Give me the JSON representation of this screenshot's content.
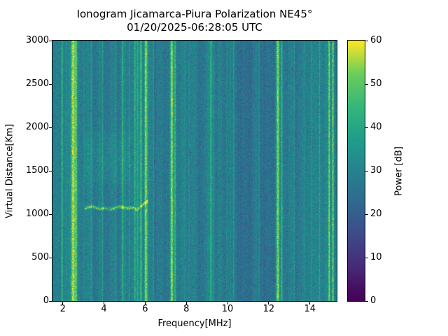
{
  "figure": {
    "title_line1": "Ionogram Jicamarca-Piura Polarization NE45°",
    "title_line2": "01/20/2025-06:28:05 UTC"
  },
  "chart_data": {
    "type": "heatmap",
    "title": "Ionogram Jicamarca-Piura Polarization NE45°",
    "subtitle": "01/20/2025-06:28:05 UTC",
    "xlabel": "Frequency[MHz]",
    "ylabel": "Virtual Distance[Km]",
    "xlim": [
      1.5,
      15.3
    ],
    "ylim": [
      0,
      3000
    ],
    "xticks": [
      2,
      4,
      6,
      8,
      10,
      12,
      14
    ],
    "yticks": [
      0,
      500,
      1000,
      1500,
      2000,
      2500,
      3000
    ],
    "grid": false,
    "colorbar": {
      "label": "Power [dB]",
      "min": 0,
      "max": 60,
      "ticks": [
        0,
        10,
        20,
        30,
        40,
        50,
        60
      ],
      "colormap": "viridis"
    },
    "background_noise_db": {
      "mean": 29,
      "spread": 5
    },
    "rfi_stripes": [
      {
        "f": 1.95,
        "w": 0.035,
        "a": 16
      },
      {
        "f": 2.48,
        "w": 0.1,
        "a": 28
      },
      {
        "f": 2.63,
        "w": 0.05,
        "a": 20
      },
      {
        "f": 3.02,
        "w": 0.03,
        "a": 7
      },
      {
        "f": 3.38,
        "w": 0.03,
        "a": 8
      },
      {
        "f": 3.92,
        "w": 0.03,
        "a": 7
      },
      {
        "f": 4.55,
        "w": 0.03,
        "a": 7
      },
      {
        "f": 4.88,
        "w": 0.04,
        "a": 12
      },
      {
        "f": 5.22,
        "w": 0.03,
        "a": 9
      },
      {
        "f": 5.48,
        "w": 0.04,
        "a": 14
      },
      {
        "f": 5.62,
        "w": 0.03,
        "a": 12
      },
      {
        "f": 5.78,
        "w": 0.05,
        "a": 18
      },
      {
        "f": 6.02,
        "w": 0.07,
        "a": 27
      },
      {
        "f": 6.38,
        "w": 0.03,
        "a": 8
      },
      {
        "f": 7.28,
        "w": 0.07,
        "a": 26
      },
      {
        "f": 7.44,
        "w": 0.04,
        "a": 18
      },
      {
        "f": 8.12,
        "w": 0.03,
        "a": 7
      },
      {
        "f": 9.18,
        "w": 0.06,
        "a": 13
      },
      {
        "f": 9.32,
        "w": 0.03,
        "a": 9
      },
      {
        "f": 9.95,
        "w": 0.03,
        "a": 6
      },
      {
        "f": 10.28,
        "w": 0.035,
        "a": 8
      },
      {
        "f": 11.52,
        "w": 0.035,
        "a": 7
      },
      {
        "f": 12.42,
        "w": 0.07,
        "a": 26
      },
      {
        "f": 12.62,
        "w": 0.04,
        "a": 16
      },
      {
        "f": 13.22,
        "w": 0.03,
        "a": 7
      },
      {
        "f": 14.05,
        "w": 0.03,
        "a": 6
      },
      {
        "f": 14.45,
        "w": 0.03,
        "a": 11
      },
      {
        "f": 14.92,
        "w": 0.045,
        "a": 24
      },
      {
        "f": 15.1,
        "w": 0.045,
        "a": 26
      }
    ],
    "dark_bands": [
      {
        "f": 8.62,
        "w": 0.2,
        "a": -3
      },
      {
        "f": 10.62,
        "w": 0.25,
        "a": -4
      },
      {
        "f": 11.05,
        "w": 0.35,
        "a": -5
      },
      {
        "f": 11.85,
        "w": 0.35,
        "a": -5
      }
    ],
    "echo_trace": {
      "f_start": 3.05,
      "f_end": 6.15,
      "alt_km": 1075,
      "thickness_km": 28,
      "amp": 26
    },
    "diffuse_echo": {
      "f_start": 3.0,
      "f_end": 5.3,
      "alt_min": 1350,
      "alt_max": 1950,
      "amp": 6
    },
    "viridis_stops": [
      [
        0.0,
        [
          68,
          1,
          84
        ]
      ],
      [
        0.125,
        [
          72,
          40,
          120
        ]
      ],
      [
        0.25,
        [
          62,
          74,
          137
        ]
      ],
      [
        0.375,
        [
          49,
          104,
          142
        ]
      ],
      [
        0.5,
        [
          38,
          130,
          142
        ]
      ],
      [
        0.625,
        [
          31,
          158,
          137
        ]
      ],
      [
        0.75,
        [
          53,
          183,
          121
        ]
      ],
      [
        0.875,
        [
          109,
          205,
          89
        ]
      ],
      [
        1.0,
        [
          253,
          231,
          37
        ]
      ]
    ]
  }
}
